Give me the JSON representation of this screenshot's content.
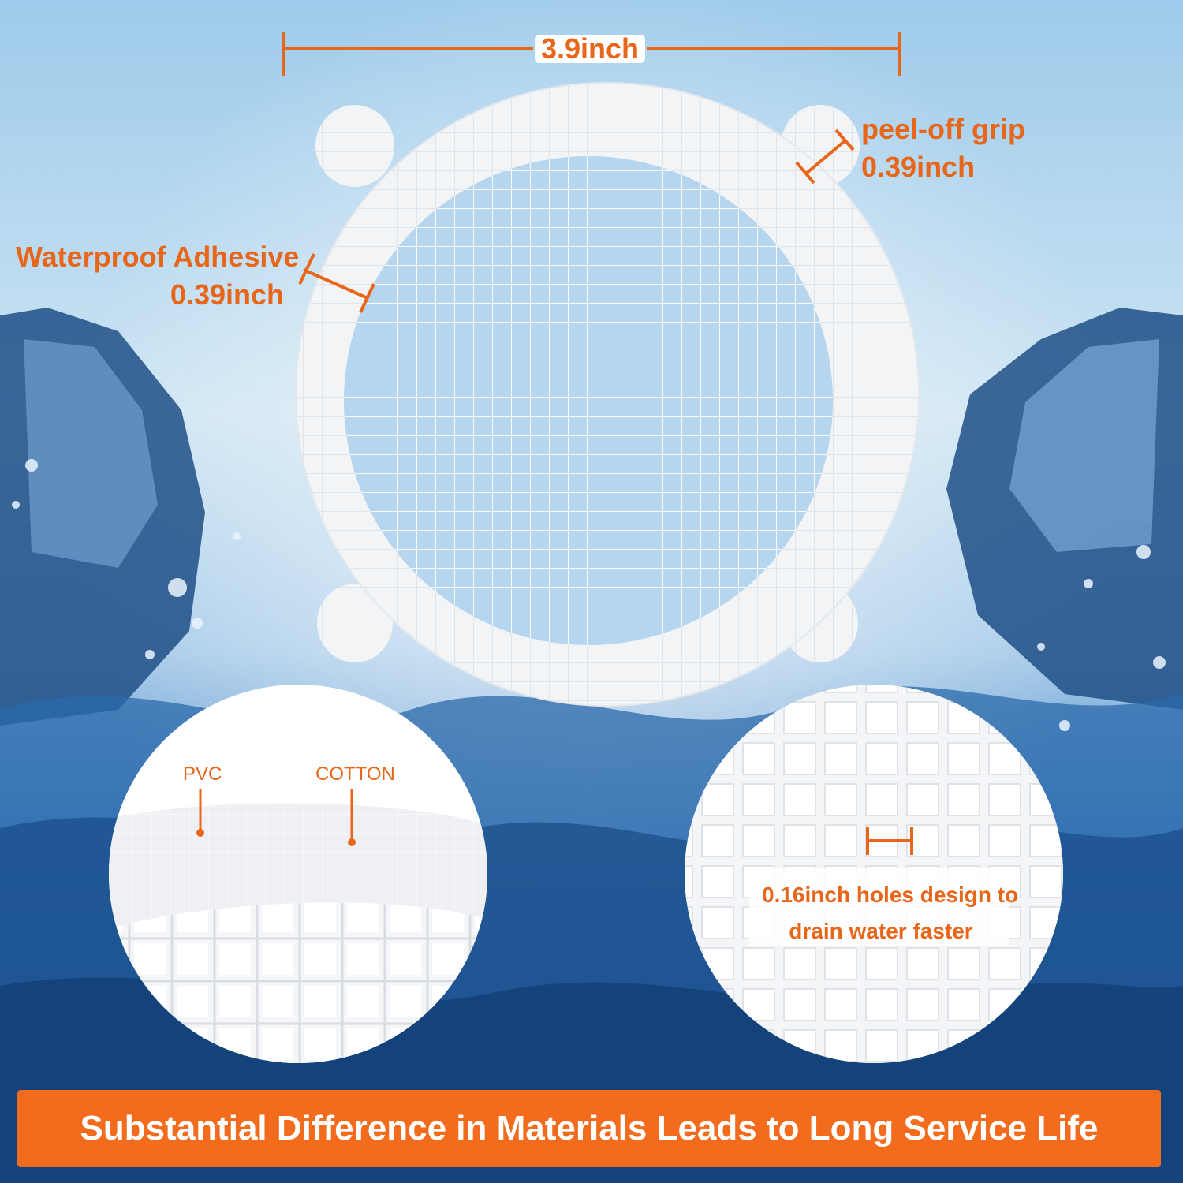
{
  "annotations": {
    "diameter": "3.9inch",
    "peel_grip_title": "peel-off grip",
    "peel_grip_size": "0.39inch",
    "adhesive_title": "Waterproof Adhesive",
    "adhesive_size": "0.39inch",
    "pvc": "PVC",
    "cotton": "COTTON",
    "holes_line1": "0.16inch holes design to",
    "holes_line2": "drain water faster"
  },
  "banner": {
    "text": "Substantial Difference in Materials Leads to Long Service Life"
  },
  "colors": {
    "accent": "#f36b1c",
    "sky_top": "#9cc8ea",
    "water_deep": "#1f5f9c",
    "patch_white": "#f2f4f7"
  }
}
